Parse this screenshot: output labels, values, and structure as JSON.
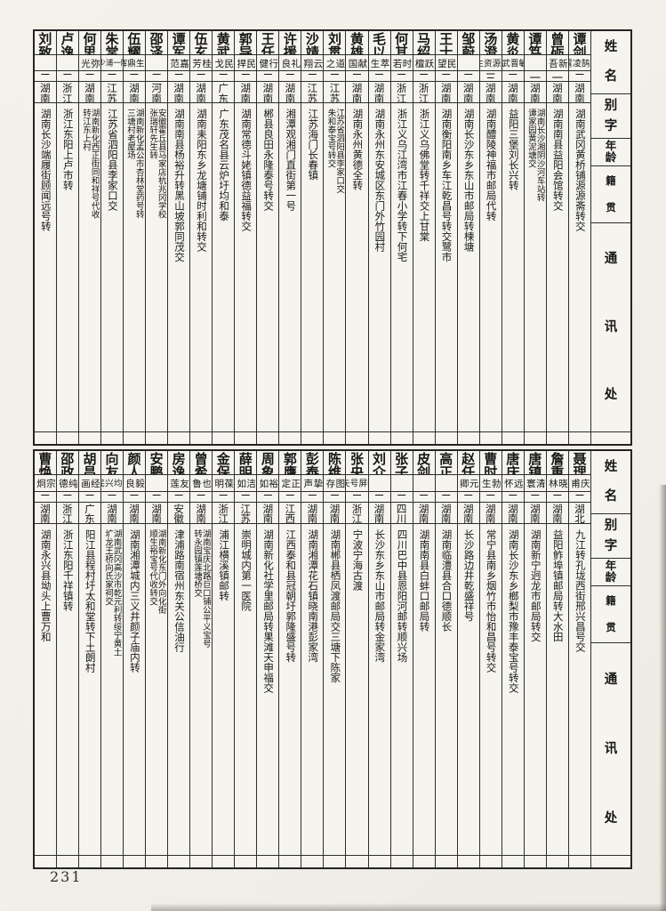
{
  "page": {
    "number": "231"
  },
  "header_labels": [
    "姓名",
    "别字",
    "年龄",
    "籍贯",
    "通讯处"
  ],
  "tables": [
    {
      "entries": [
        {
          "name": "谭剑萍",
          "alias": [
            "延鹄",
            "凌霄"
          ],
          "age": "二九",
          "native": "湖南",
          "address": "湖南武冈黄桥铺源源斋转交"
        },
        {
          "name": "曾砺",
          "alias": "新吾",
          "age": "一八",
          "native": "湖南南县",
          "address": "湖南南县益阳会馆转交"
        },
        {
          "name": "谭笃斌",
          "alias": "",
          "age": "一九",
          "native": "湖南长沙",
          "address": [
            "湖南长沙湘阴沙河车站转",
            "谭家园黄泥塘交"
          ]
        },
        {
          "name": "黄炎",
          "alias": [
            "敏",
            "晋武"
          ],
          "age": "二一",
          "native": "湖南益阳",
          "address": "益阳三堡刘长兴转"
        },
        {
          "name": "汤澄",
          "alias": [
            "逢源",
            "资生"
          ],
          "age": "三一",
          "native": "湖南醴陵",
          "address": "湖南醴陵神福市邮局代转"
        },
        {
          "name": "邹蔚华",
          "alias": "",
          "age": "二〇",
          "native": "湖南长沙",
          "address": "湖南长沙东乡东山市邮局转楝塘"
        },
        {
          "name": "王士杰",
          "alias": "民望",
          "age": "二三",
          "native": "湖南衡阳",
          "address": "湖南衡阳南乡车江乾昌号转交鹭市"
        },
        {
          "name": "马绍华",
          "alias": "跃檀",
          "age": "二四",
          "native": "浙江东阳",
          "address": "浙江义乌佛堂转千祥交上甘棠"
        },
        {
          "name": "何其雍",
          "alias": "时若",
          "age": "二四",
          "native": "浙江",
          "address": "浙江义乌江湾市江春小学转下何宅"
        },
        {
          "name": "毛以仁",
          "alias": "萃生",
          "age": "二三",
          "native": "湖南",
          "address": "湖南永州东安城区东门外竹园村"
        },
        {
          "name": "黄雄",
          "alias": "献国",
          "age": "二五",
          "native": "湖南",
          "address": "湖南永州黄德全转"
        },
        {
          "name": "刘贯今",
          "alias": "道之",
          "age": "二〇",
          "native": "江苏省",
          "address": [
            "江苏省泗阳县李家口交",
            "朱和泰宝号转交"
          ]
        },
        {
          "name": "沙靖",
          "alias": "云翔",
          "age": "二四",
          "native": "江苏",
          "address": "江苏海门长春镇"
        },
        {
          "name": "许援",
          "alias": "礼良",
          "age": "二三",
          "native": "湖南",
          "address": "湘潭观湘门直街第一号"
        },
        {
          "name": "王任",
          "alias": "行健",
          "age": "二六",
          "native": "湖南",
          "address": "郴县良田永隆泰号转交"
        },
        {
          "name": "郭导",
          "alias": "民捍",
          "age": "二〇",
          "native": "湖南",
          "address": "湖南常德斗姥镇德益福转交"
        },
        {
          "name": "黄武",
          "alias": "民戈",
          "age": "二九",
          "native": "广东",
          "address": "广东茂名县云炉圩均和泰"
        },
        {
          "name": "伍玄",
          "alias": "桂芳",
          "age": "二三",
          "native": "湖南耒阳",
          "address": "湖南耒阳东乡龙塘铺时利和转交"
        },
        {
          "name": "谭军",
          "alias": "嘉范",
          "age": "二五",
          "native": "湖南华容",
          "address": "湖南南县杨裕升转黑山坡郭同茂交"
        },
        {
          "name": "邵泽远",
          "alias": "",
          "age": "二五",
          "native": "河南固始县",
          "address": [
            "安徽霍丘县马家店杭兆冈学校",
            "张瑞轩先生转"
          ]
        },
        {
          "name": "伍耀宗",
          "alias": [
            "更生",
            "鼎辉"
          ],
          "age": "二〇",
          "native": "湖南",
          "address": [
            "湖南新化孟公市杏林堂药号转",
            "三塘村老屋场"
          ]
        },
        {
          "name": "朱常桂",
          "alias": [
            "东陆",
            "一浦",
            "少九"
          ],
          "age": "二一",
          "native": "江苏省",
          "address": "江苏省泗阳县李家口交"
        },
        {
          "name": "何思孝",
          "alias": "弥光",
          "age": "二二",
          "native": "湖南",
          "address": [
            "湖南新化西正街同和祥号代收",
            "转江东上村"
          ]
        },
        {
          "name": "卢逸民",
          "alias": "",
          "age": "二六",
          "native": "浙江",
          "address": "浙江东阳上卢市转"
        },
        {
          "name": "刘致康",
          "alias": "",
          "age": "二八",
          "native": "湖南沅江",
          "address": "湖南长沙端履街顾闻远号转"
        }
      ]
    },
    {
      "entries": [
        {
          "name": "聂理堂",
          "alias": "庆甫",
          "age": "二七",
          "native": "湖北",
          "address": "九江转孔垅西街邢兴昌号交"
        },
        {
          "name": "詹重民",
          "alias": "晓林",
          "age": "二六",
          "native": "湖南益阳",
          "address": "益阳鲊埠镇邮局转大水田"
        },
        {
          "name": "唐镇群",
          "alias": "清寰",
          "age": "二四",
          "native": "湖南新宁",
          "address": "湖南新宁迥龙市邮局转交"
        },
        {
          "name": "唐庆超",
          "alias": "远怀",
          "age": "二四",
          "native": "湖南",
          "address": "湖南长沙东乡榔梨市豫丰泰宝号转交"
        },
        {
          "name": "曹时霖",
          "alias": "勃生",
          "age": "二四",
          "native": "湖南",
          "address": "常宁县南乡烟竹市怡和昌号转交"
        },
        {
          "name": "赵任侠",
          "alias": "元卿",
          "age": "二七",
          "native": "湖南长沙",
          "address": "长沙路边井乾盛祥号"
        },
        {
          "name": "高正心",
          "alias": "",
          "age": "二三",
          "native": "湖南",
          "address": "湖南临澧县合口德顺长"
        },
        {
          "name": "皮剑南",
          "alias": "",
          "age": "二三",
          "native": "湖南常德",
          "address": "湖南南县白蚌口邮局转"
        },
        {
          "name": "张子完",
          "alias": "",
          "age": "二二",
          "native": "四川",
          "address": "四川巴中县恩阳河邮转顺兴场"
        },
        {
          "name": "刘介初",
          "alias": "",
          "age": "二四",
          "native": "湖南",
          "address": "长沙东乡东山市邮局转金家湾"
        },
        {
          "name": "张央屏",
          "alias": [
            "映屏",
            "号矢"
          ],
          "age": "二八",
          "native": "浙江",
          "address": "宁波宁海古渡"
        },
        {
          "name": "陈维国",
          "alias": "图存",
          "age": "二三",
          "native": "湖南郴县",
          "address": "湖南郴县栖凤渡邮局交三塘下陈家"
        },
        {
          "name": "彭泰安",
          "alias": "挚声",
          "age": "二二",
          "native": "湖南湘潭",
          "address": "湖南湘潭花石镇晓南港彭家湾"
        },
        {
          "name": "郭膺中",
          "alias": "正定",
          "age": "二二",
          "native": "江西",
          "address": "江西泰和县冠朝圩郭隆盛号转"
        },
        {
          "name": "周象华",
          "alias": "裕如",
          "age": "二一",
          "native": "湖南新化",
          "address": "湖南新化社学里邮局转果滩天申福交"
        },
        {
          "name": "薛明亮",
          "alias": "洁如",
          "age": "二四",
          "native": "江苏",
          "address": "崇明城内第一医院"
        },
        {
          "name": "金保民",
          "alias": "葆明",
          "age": "二二",
          "native": "浙江",
          "address": "浦江横溪镇邮转"
        },
        {
          "name": "曾希禹",
          "alias": "也鲁",
          "age": "二一",
          "native": "湖南",
          "address": [
            "湖南宝庆北路巨口铺公平义宝号",
            "转永园镇莲塘桥交"
          ]
        },
        {
          "name": "房逸民",
          "alias": "友莲",
          "age": "二四",
          "native": "安徽",
          "address": "津浦路南宿州东关公信油行"
        },
        {
          "name": "安鹏秋",
          "alias": "",
          "age": "二二",
          "native": "湖南",
          "address": [
            "湖南新化东门外向化街",
            "顺生裕宝号代收转交"
          ]
        },
        {
          "name": "颜人伟",
          "alias": "毅良",
          "age": "二三",
          "native": "湖南",
          "address": "湖南湘潭城内三义井颜子庙内转"
        },
        {
          "name": "向友国",
          "alias": [
            "乘均",
            "兴民"
          ],
          "age": "二三",
          "native": "湖南绥宁",
          "address": [
            "湖南武冈高沙市乾元利转绥宁黄土",
            "圹龙王桥向氏家祠交"
          ]
        },
        {
          "name": "胡昌徽",
          "alias": "经画",
          "age": "二四",
          "native": "广东",
          "address": "阳江县程村圩太和堂转下土朗村"
        },
        {
          "name": "邵政",
          "alias": "纯德",
          "age": "二五",
          "native": "浙江",
          "address": "浙江东阳千祥镇转"
        },
        {
          "name": "曹焕",
          "alias": "宗炯",
          "age": "二五",
          "native": "湖南",
          "address": "湖南永兴县坳头上曹万和"
        }
      ]
    }
  ]
}
